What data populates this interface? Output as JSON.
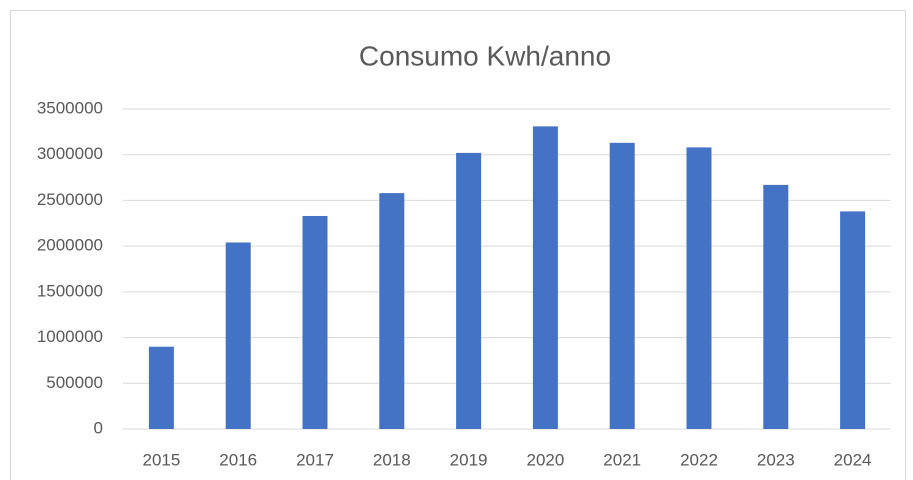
{
  "chart_data": {
    "type": "bar",
    "title": "Consumo Kwh/anno",
    "categories": [
      "2015",
      "2016",
      "2017",
      "2018",
      "2019",
      "2020",
      "2021",
      "2022",
      "2023",
      "2024"
    ],
    "values": [
      900000,
      2040000,
      2330000,
      2580000,
      3020000,
      3310000,
      3130000,
      3080000,
      2670000,
      2380000
    ],
    "color": "#4472c4",
    "ylim": [
      0,
      3500000
    ],
    "yticks": [
      0,
      500000,
      1000000,
      1500000,
      2000000,
      2500000,
      3000000,
      3500000
    ],
    "grid": true
  }
}
